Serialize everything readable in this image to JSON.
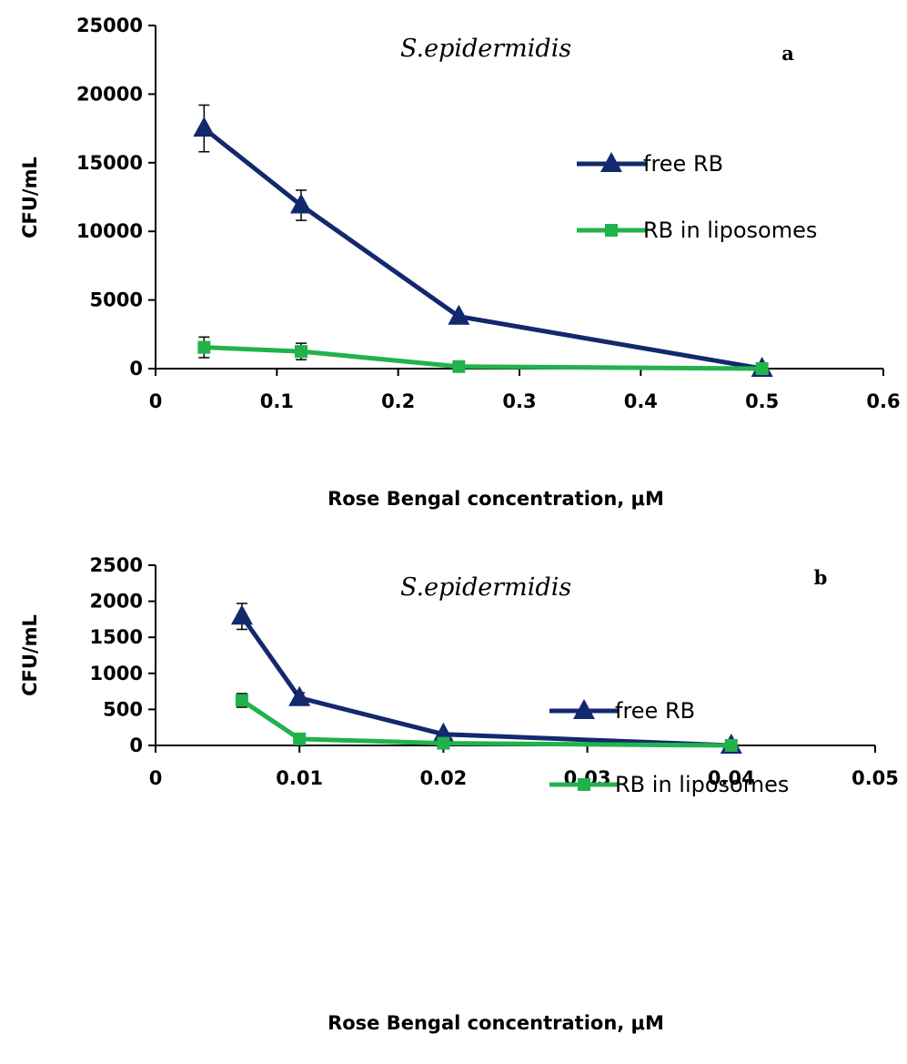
{
  "chart_data": [
    {
      "type": "line",
      "title": "S.epidermidis",
      "panel_label": "a",
      "xlabel": "Rose Bengal concentration, μM",
      "ylabel": "CFU/mL",
      "xlim": [
        0,
        0.6
      ],
      "ylim": [
        0,
        25000
      ],
      "x_ticks": [
        "0",
        "0.1",
        "0.2",
        "0.3",
        "0.4",
        "0.5",
        "0.6"
      ],
      "y_ticks": [
        "0",
        "5000",
        "10000",
        "15000",
        "20000",
        "25000"
      ],
      "grid": false,
      "legend_position": "right",
      "series": [
        {
          "name": "free RB",
          "color": "#14286e",
          "marker": "triangle",
          "x": [
            0.04,
            0.12,
            0.25,
            0.5
          ],
          "y": [
            17500,
            11900,
            3800,
            0
          ],
          "error": [
            1700,
            1100,
            0,
            0
          ]
        },
        {
          "name": "RB in liposomes",
          "color": "#22b24c",
          "marker": "square",
          "x": [
            0.04,
            0.12,
            0.25,
            0.5
          ],
          "y": [
            1550,
            1250,
            150,
            0
          ],
          "error": [
            750,
            600,
            0,
            0
          ]
        }
      ]
    },
    {
      "type": "line",
      "title": "S.epidermidis",
      "panel_label": "b",
      "xlabel": "Rose Bengal concentration, μM",
      "ylabel": "CFU/mL",
      "xlim": [
        0,
        0.05
      ],
      "ylim": [
        0,
        2500
      ],
      "x_ticks": [
        "0",
        "0.01",
        "0.02",
        "0.03",
        "0.04",
        "0.05"
      ],
      "y_ticks": [
        "0",
        "500",
        "1000",
        "1500",
        "2000",
        "2500"
      ],
      "grid": false,
      "legend_position": "right",
      "series": [
        {
          "name": "free RB",
          "color": "#14286e",
          "marker": "triangle",
          "x": [
            0.006,
            0.01,
            0.02,
            0.04
          ],
          "y": [
            1790,
            660,
            155,
            0
          ],
          "error": [
            180,
            70,
            0,
            0
          ]
        },
        {
          "name": "RB in liposomes",
          "color": "#22b24c",
          "marker": "square",
          "x": [
            0.006,
            0.01,
            0.02,
            0.04
          ],
          "y": [
            625,
            90,
            30,
            0
          ],
          "error": [
            95,
            0,
            0,
            0
          ]
        }
      ]
    }
  ]
}
